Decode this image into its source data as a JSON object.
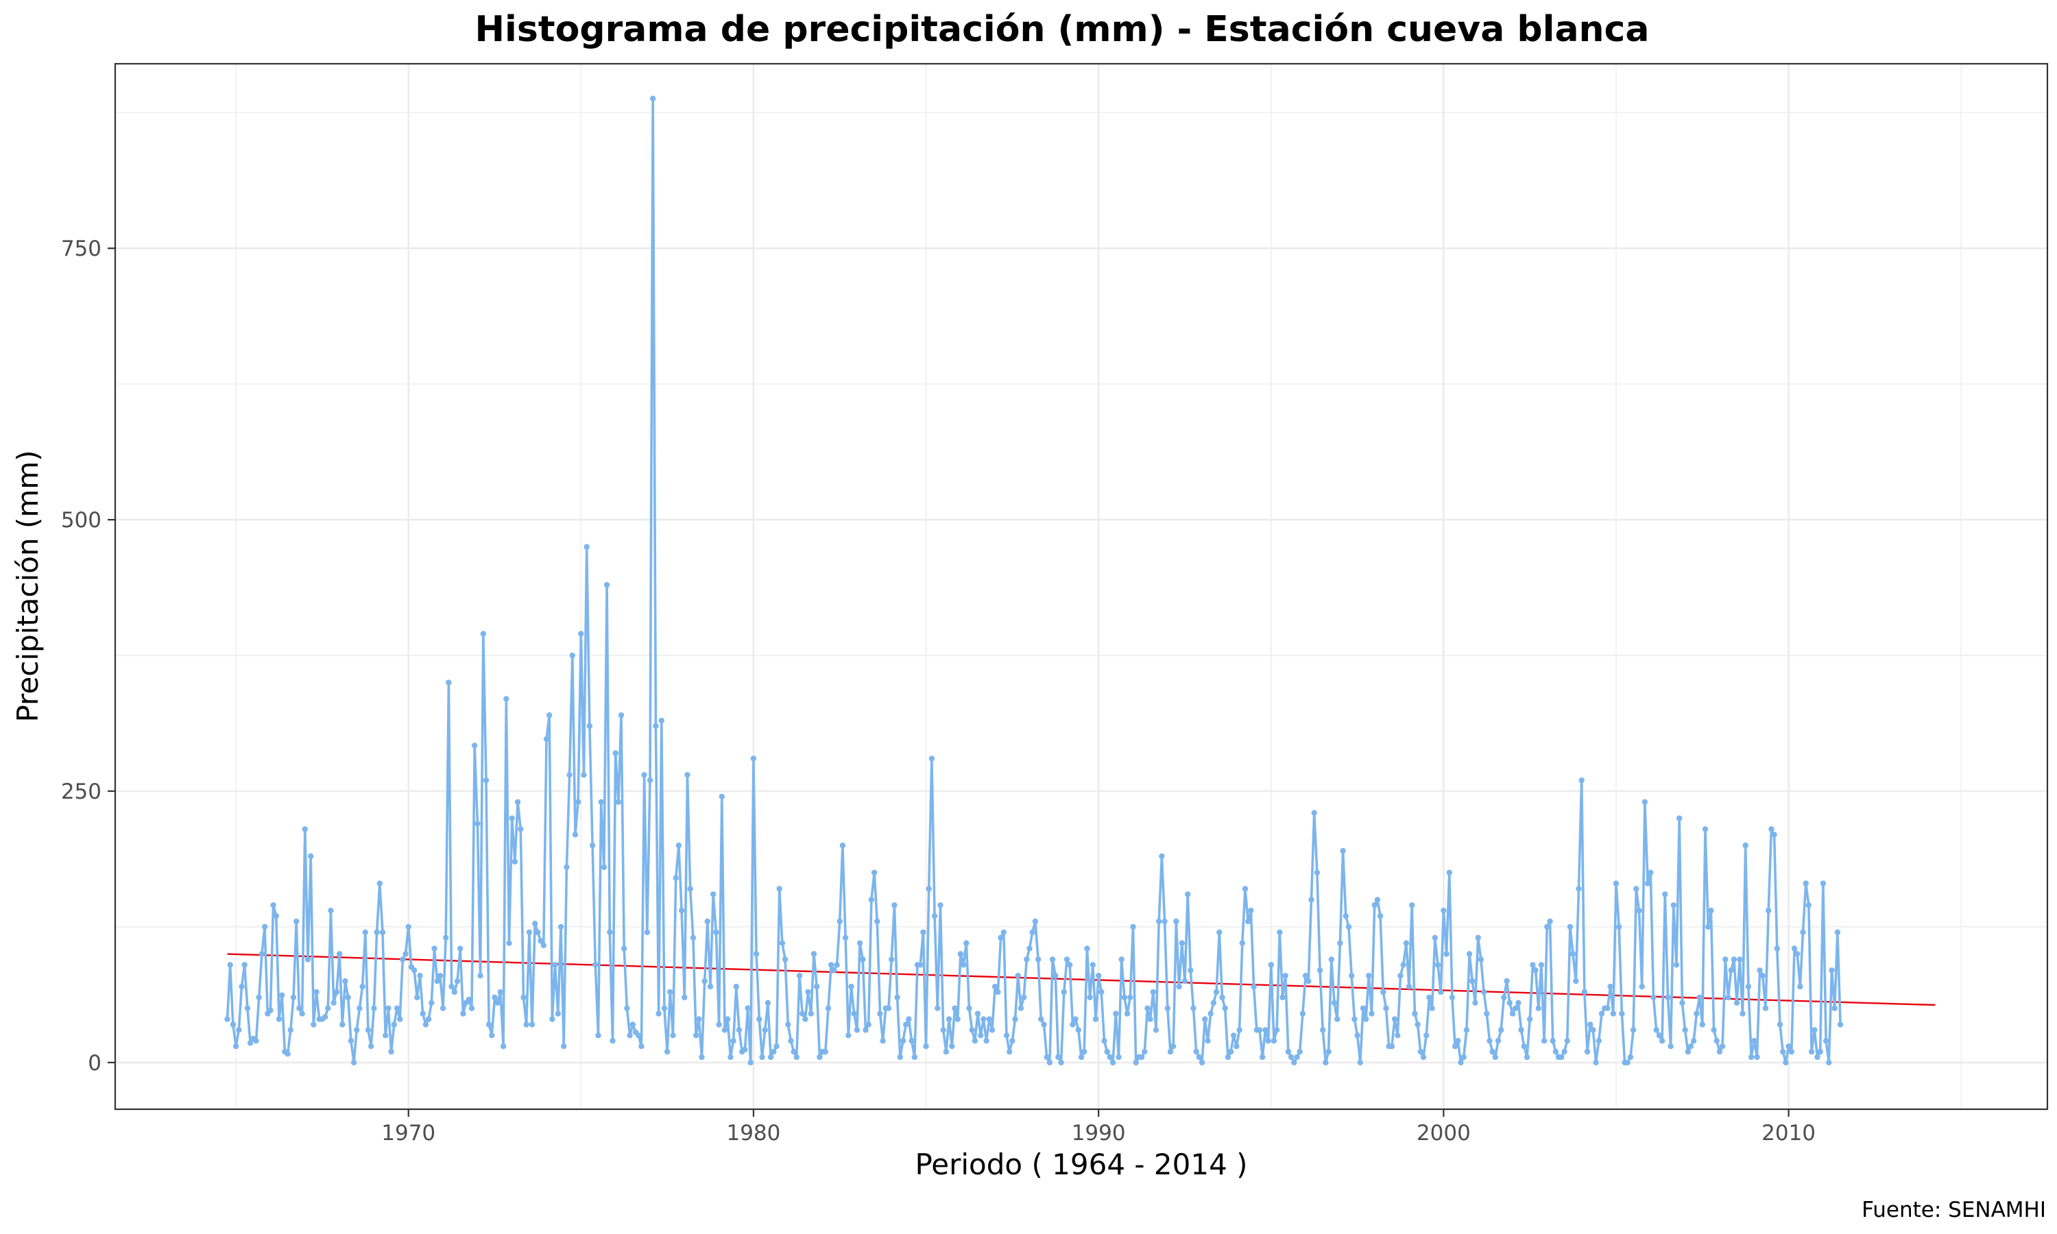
{
  "chart_data": {
    "type": "line",
    "title": "Histograma de precipitación (mm) - Estación cueva blanca",
    "xlabel": "Periodo ( 1964 - 2014 )",
    "ylabel": "Precipitación (mm)",
    "caption": "Fuente: SENAMHI",
    "xlim": [
      1961.5,
      2017.5
    ],
    "ylim": [
      -43,
      920
    ],
    "x_ticks": [
      1970,
      1980,
      1990,
      2000,
      2010
    ],
    "y_ticks": [
      0,
      250,
      500,
      750
    ],
    "x_tick_labels": [
      "1970",
      "1980",
      "1990",
      "2000",
      "2010"
    ],
    "y_tick_labels": [
      "0",
      "250",
      "500",
      "750"
    ],
    "grid": true,
    "series": [
      {
        "color": "#7cb5ec",
        "start": 1964.75,
        "step": 0.083333,
        "values": [
          40,
          90,
          35,
          15,
          30,
          70,
          90,
          50,
          18,
          22,
          20,
          60,
          100,
          125,
          45,
          48,
          145,
          135,
          40,
          62,
          10,
          8,
          30,
          60,
          130,
          50,
          45,
          215,
          95,
          190,
          35,
          65,
          40,
          40,
          42,
          50,
          140,
          55,
          65,
          100,
          35,
          75,
          60,
          20,
          0,
          30,
          50,
          70,
          120,
          30,
          15,
          50,
          120,
          165,
          120,
          25,
          50,
          10,
          35,
          50,
          40,
          95,
          100,
          125,
          88,
          85,
          60,
          80,
          45,
          35,
          40,
          55,
          105,
          75,
          80,
          50,
          115,
          350,
          70,
          65,
          75,
          105,
          45,
          55,
          58,
          50,
          292,
          220,
          80,
          395,
          260,
          35,
          25,
          60,
          55,
          65,
          15,
          335,
          110,
          225,
          185,
          240,
          215,
          60,
          35,
          120,
          35,
          128,
          120,
          112,
          108,
          298,
          320,
          40,
          90,
          45,
          125,
          15,
          180,
          265,
          375,
          210,
          240,
          395,
          265,
          475,
          310,
          200,
          90,
          25,
          240,
          180,
          440,
          120,
          20,
          285,
          240,
          320,
          105,
          50,
          25,
          35,
          28,
          25,
          15,
          265,
          120,
          260,
          888,
          310,
          45,
          315,
          50,
          10,
          65,
          25,
          170,
          200,
          140,
          60,
          265,
          160,
          115,
          25,
          40,
          5,
          75,
          130,
          70,
          155,
          120,
          35,
          245,
          30,
          40,
          5,
          20,
          70,
          30,
          10,
          12,
          50,
          0,
          280,
          100,
          40,
          5,
          30,
          55,
          5,
          10,
          15,
          160,
          110,
          95,
          35,
          20,
          10,
          5,
          80,
          45,
          40,
          65,
          45,
          100,
          70,
          5,
          10,
          10,
          50,
          90,
          85,
          90,
          130,
          200,
          115,
          25,
          70,
          45,
          30,
          110,
          95,
          30,
          35,
          150,
          175,
          130,
          45,
          20,
          50,
          50,
          95,
          145,
          60,
          5,
          20,
          35,
          40,
          20,
          5,
          90,
          90,
          120,
          15,
          160,
          280,
          135,
          50,
          145,
          30,
          10,
          40,
          15,
          50,
          40,
          100,
          90,
          110,
          50,
          30,
          20,
          45,
          25,
          40,
          20,
          40,
          30,
          70,
          65,
          115,
          120,
          25,
          10,
          20,
          40,
          80,
          50,
          60,
          95,
          105,
          120,
          130,
          95,
          40,
          35,
          5,
          0,
          95,
          80,
          5,
          0,
          65,
          95,
          90,
          35,
          40,
          30,
          5,
          10,
          105,
          60,
          90,
          40,
          80,
          65,
          20,
          10,
          5,
          0,
          45,
          5,
          95,
          60,
          45,
          60,
          125,
          0,
          5,
          5,
          10,
          50,
          40,
          65,
          30,
          130,
          190,
          130,
          50,
          10,
          15,
          130,
          70,
          110,
          75,
          155,
          85,
          50,
          10,
          5,
          0,
          40,
          20,
          45,
          55,
          65,
          120,
          60,
          50,
          5,
          10,
          25,
          15,
          30,
          110,
          160,
          130,
          140,
          70,
          30,
          30,
          5,
          30,
          20,
          90,
          20,
          30,
          120,
          60,
          80,
          10,
          5,
          0,
          5,
          10,
          45,
          80,
          75,
          150,
          230,
          175,
          85,
          30,
          0,
          10,
          95,
          55,
          40,
          110,
          195,
          135,
          125,
          80,
          40,
          25,
          0,
          50,
          40,
          80,
          45,
          145,
          150,
          135,
          65,
          50,
          15,
          15,
          40,
          25,
          80,
          90,
          110,
          70,
          145,
          45,
          35,
          10,
          5,
          25,
          60,
          50,
          115,
          90,
          65,
          140,
          100,
          175,
          60,
          15,
          20,
          0,
          5,
          30,
          100,
          75,
          55,
          115,
          95,
          65,
          45,
          20,
          10,
          5,
          20,
          30,
          60,
          75,
          55,
          45,
          50,
          55,
          30,
          15,
          5,
          40,
          90,
          85,
          50,
          90,
          20,
          125,
          130,
          20,
          10,
          5,
          5,
          10,
          20,
          125,
          100,
          75,
          160,
          260,
          65,
          10,
          35,
          30,
          0,
          20,
          45,
          50,
          50,
          70,
          45,
          165,
          125,
          45,
          0,
          0,
          5,
          30,
          160,
          140,
          70,
          240,
          165,
          175,
          60,
          30,
          25,
          20,
          155,
          60,
          15,
          145,
          90,
          225,
          55,
          30,
          10,
          15,
          20,
          45,
          60,
          35,
          215,
          125,
          140,
          30,
          20,
          10,
          15,
          95,
          60,
          85,
          95,
          55,
          95,
          45,
          200,
          70,
          5,
          20,
          5,
          85,
          80,
          50,
          140,
          215,
          210,
          105,
          35,
          10,
          0,
          15,
          10,
          105,
          100,
          70,
          120,
          165,
          145,
          10,
          30,
          5,
          10,
          165,
          20,
          0,
          85,
          50,
          120,
          35
        ]
      }
    ],
    "trend_line": {
      "color": "#e8000b",
      "x": [
        1964.75,
        2014.25
      ],
      "y": [
        100,
        53
      ]
    }
  }
}
